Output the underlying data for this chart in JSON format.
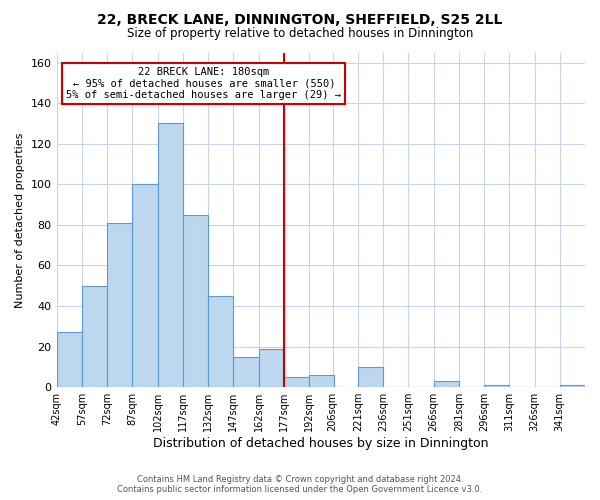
{
  "title": "22, BRECK LANE, DINNINGTON, SHEFFIELD, S25 2LL",
  "subtitle": "Size of property relative to detached houses in Dinnington",
  "xlabel": "Distribution of detached houses by size in Dinnington",
  "ylabel": "Number of detached properties",
  "bin_labels": [
    "42sqm",
    "57sqm",
    "72sqm",
    "87sqm",
    "102sqm",
    "117sqm",
    "132sqm",
    "147sqm",
    "162sqm",
    "177sqm",
    "192sqm",
    "206sqm",
    "221sqm",
    "236sqm",
    "251sqm",
    "266sqm",
    "281sqm",
    "296sqm",
    "311sqm",
    "326sqm",
    "341sqm"
  ],
  "bin_left_edges": [
    42,
    57,
    72,
    87,
    102,
    117,
    132,
    147,
    162,
    177,
    192,
    206,
    221,
    236,
    251,
    266,
    281,
    296,
    311,
    326,
    341
  ],
  "bin_width": 15,
  "bar_heights": [
    27,
    50,
    81,
    100,
    130,
    85,
    45,
    15,
    19,
    5,
    6,
    0,
    10,
    0,
    0,
    3,
    0,
    1,
    0,
    0,
    1
  ],
  "bar_color": "#bdd7ee",
  "bar_edge_color": "#5b9bd5",
  "property_line_x": 177,
  "annotation_text": "22 BRECK LANE: 180sqm\n← 95% of detached houses are smaller (550)\n5% of semi-detached houses are larger (29) →",
  "annotation_box_color": "#ffffff",
  "annotation_border_color": "#cc0000",
  "vline_color": "#cc0000",
  "ylim": [
    0,
    165
  ],
  "xlim": [
    42,
    356
  ],
  "yticks": [
    0,
    20,
    40,
    60,
    80,
    100,
    120,
    140,
    160
  ],
  "footer_line1": "Contains HM Land Registry data © Crown copyright and database right 2024.",
  "footer_line2": "Contains public sector information licensed under the Open Government Licence v3.0.",
  "bg_color": "#ffffff",
  "grid_color": "#c8d4e8"
}
